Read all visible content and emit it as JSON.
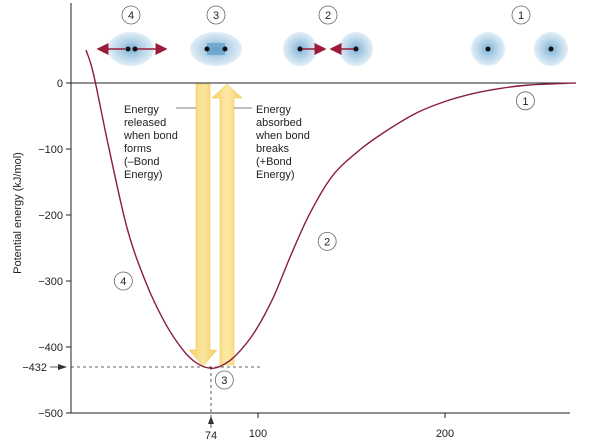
{
  "chart_data": {
    "type": "line",
    "ylabel": "Potential energy (kJ/mol)",
    "xlabel": "",
    "xlim": [
      0,
      280
    ],
    "ylim": [
      -500,
      50
    ],
    "x_ticks": [
      100,
      200
    ],
    "y_ticks": [
      0,
      -100,
      -200,
      -300,
      -400,
      -500
    ],
    "y_tick_labels": [
      "0",
      "−100",
      "−200",
      "−300",
      "−400",
      "−500"
    ],
    "grid": false,
    "series": [
      {
        "points": [
          {
            "x": 8,
            "y": 50
          },
          {
            "x": 12,
            "y": 14
          },
          {
            "x": 20,
            "y": -95
          },
          {
            "x": 30,
            "y": -220
          },
          {
            "x": 40,
            "y": -302
          },
          {
            "x": 50,
            "y": -362
          },
          {
            "x": 60,
            "y": -405
          },
          {
            "x": 67,
            "y": -424
          },
          {
            "x": 74,
            "y": -432
          },
          {
            "x": 80,
            "y": -429
          },
          {
            "x": 88,
            "y": -413
          },
          {
            "x": 98,
            "y": -378
          },
          {
            "x": 108,
            "y": -326
          },
          {
            "x": 118,
            "y": -258
          },
          {
            "x": 128,
            "y": -196
          },
          {
            "x": 140,
            "y": -140
          },
          {
            "x": 155,
            "y": -100
          },
          {
            "x": 170,
            "y": -70
          },
          {
            "x": 185,
            "y": -45
          },
          {
            "x": 200,
            "y": -28
          },
          {
            "x": 215,
            "y": -16
          },
          {
            "x": 230,
            "y": -8
          },
          {
            "x": 245,
            "y": -3
          },
          {
            "x": 260,
            "y": -1
          },
          {
            "x": 270,
            "y": 0
          }
        ],
        "color": "#8a1d3f"
      }
    ],
    "bond_length_label": "74",
    "min_energy_label": "−432",
    "annotations": {
      "released": [
        "Energy",
        "released",
        "when bond",
        "forms",
        "(–Bond",
        "Energy)"
      ],
      "absorbed": [
        "Energy",
        "absorbed",
        "when bond",
        "breaks",
        "(+Bond",
        "Energy)"
      ]
    },
    "curve_markers": [
      {
        "label": "1",
        "x": 243,
        "y": -27
      },
      {
        "label": "2",
        "x": 137,
        "y": -240
      },
      {
        "label": "3",
        "x": 82,
        "y": -450
      },
      {
        "label": "4",
        "x": 28,
        "y": -300
      }
    ],
    "stage_labels": [
      "4",
      "3",
      "2",
      "1"
    ],
    "colors": {
      "curve": "#8a1d3f",
      "arrow_fill": "#f7d36a",
      "arrow_fill_light": "#fbe9a4",
      "atom_cloud": "#cfe3f1",
      "atom_cloud_edge": "#9ec3de",
      "red_arrow": "#9b1b3a"
    }
  }
}
